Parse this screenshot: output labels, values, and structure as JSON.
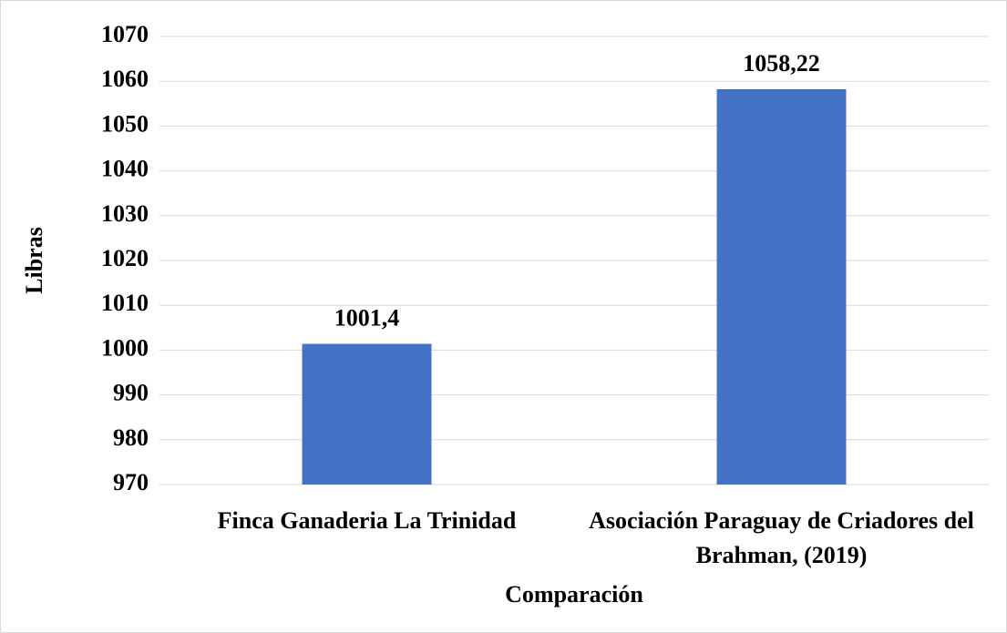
{
  "chart_data": {
    "type": "bar",
    "categories": [
      "Finca Ganaderia La Trinidad",
      "Asociación Paraguay de Criadores del Brahman, (2019)"
    ],
    "values": [
      1001.4,
      1058.22
    ],
    "value_labels": [
      "1001,4",
      "1058,22"
    ],
    "color": "#4472c4",
    "xlabel": "Comparación",
    "ylabel": "Libras",
    "ylim": [
      970,
      1070
    ],
    "yticks": [
      970,
      980,
      990,
      1000,
      1010,
      1020,
      1030,
      1040,
      1050,
      1060,
      1070
    ],
    "grid": true
  }
}
